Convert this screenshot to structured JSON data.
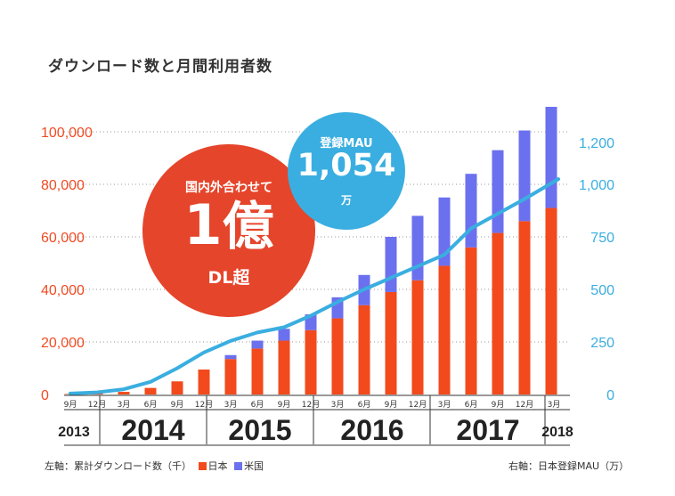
{
  "title": "ダウンロード数と月間利用者数",
  "badge_dl": {
    "line1": "国内外合わせて",
    "big": "1",
    "big2": "億",
    "line3": "DL超"
  },
  "badge_mau": {
    "line1": "登録MAU",
    "value": "1,054",
    "unit": "万"
  },
  "footer": {
    "left_axis": "左軸：累計ダウンロード数（千）",
    "legend_japan": "日本",
    "legend_us": "米国",
    "right_axis": "右軸：日本登録MAU（万）"
  },
  "colors": {
    "japan": "#f24a1c",
    "us": "#6b70ee",
    "mau": "#3aaee0",
    "left_ticks": "#f04b22",
    "right_ticks": "#3aaee0"
  },
  "chart_data": {
    "type": "bar",
    "categories": [
      "9月",
      "12月",
      "3月",
      "6月",
      "9月",
      "12月",
      "3月",
      "6月",
      "9月",
      "12月",
      "3月",
      "6月",
      "9月",
      "12月",
      "3月",
      "6月",
      "9月",
      "12月",
      "3月"
    ],
    "years": [
      {
        "label": "2013",
        "start": 0,
        "end": 1
      },
      {
        "label": "2014",
        "start": 2,
        "end": 5
      },
      {
        "label": "2015",
        "start": 6,
        "end": 9
      },
      {
        "label": "2016",
        "start": 10,
        "end": 13
      },
      {
        "label": "2017",
        "start": 14,
        "end": 17
      },
      {
        "label": "2018",
        "start": 18,
        "end": 18
      }
    ],
    "series": [
      {
        "name": "日本",
        "stack": true,
        "axis": "left",
        "values": [
          200,
          500,
          1000,
          2500,
          5000,
          9500,
          13500,
          17500,
          20500,
          24500,
          29000,
          34000,
          39000,
          43500,
          49000,
          56000,
          61500,
          66000,
          71000
        ]
      },
      {
        "name": "米国",
        "stack": true,
        "axis": "left",
        "values": [
          0,
          0,
          0,
          0,
          0,
          0,
          1500,
          3000,
          4500,
          6000,
          8000,
          11500,
          21000,
          24500,
          26000,
          28000,
          31500,
          34500,
          38500
        ]
      }
    ],
    "mau": {
      "axis": "right",
      "values": [
        5,
        10,
        25,
        60,
        125,
        200,
        255,
        295,
        320,
        375,
        440,
        500,
        555,
        610,
        665,
        790,
        860,
        930,
        1025
      ]
    },
    "ylim_left": [
      0,
      100000
    ],
    "left_ticks": [
      "0",
      "20,000",
      "40,000",
      "60,000",
      "80,000",
      "100,000"
    ],
    "ylim_right": [
      0,
      1250
    ],
    "right_ticks": [
      "0",
      "250",
      "500",
      "750",
      "1,000",
      "1,200"
    ],
    "grid": true
  }
}
